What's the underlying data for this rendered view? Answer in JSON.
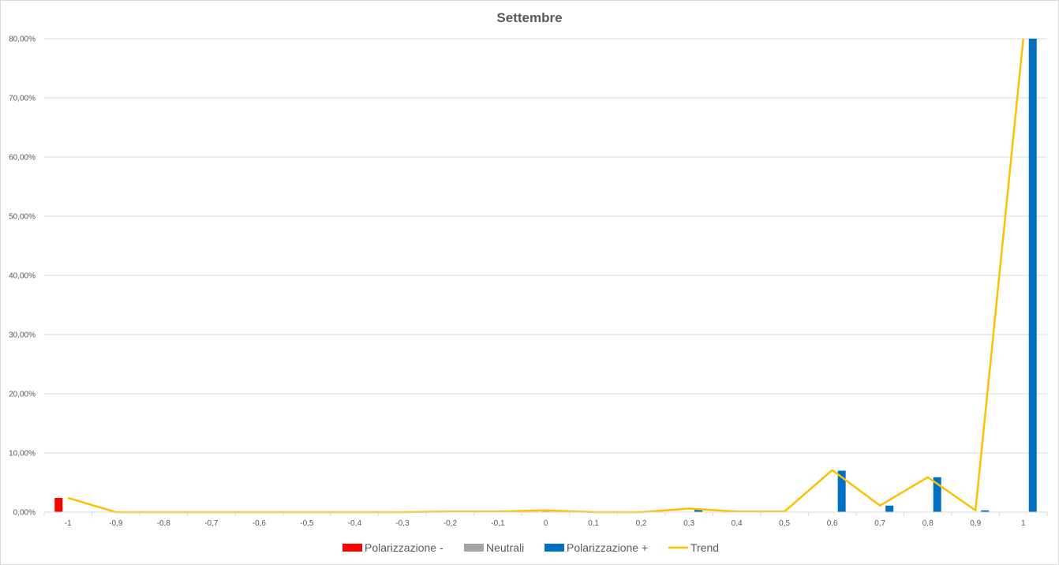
{
  "chart_data": {
    "type": "bar",
    "title": "Settembre",
    "xlabel": "",
    "ylabel": "",
    "categories": [
      "-1",
      "-0,9",
      "-0,8",
      "-0,7",
      "-0,6",
      "-0,5",
      "-0,4",
      "-0,3",
      "-0,2",
      "-0,1",
      "0",
      "0,1",
      "0,2",
      "0,3",
      "0,4",
      "0,5",
      "0,6",
      "0,7",
      "0,8",
      "0,9",
      "1"
    ],
    "y_ticks": [
      "0,00%",
      "10,00%",
      "20,00%",
      "30,00%",
      "40,00%",
      "50,00%",
      "60,00%",
      "70,00%",
      "80,00%"
    ],
    "ylim": [
      0,
      80
    ],
    "grid": true,
    "legend_position": "bottom",
    "series": [
      {
        "name": "Polarizzazione -",
        "type": "bar",
        "color": "#ff0000",
        "values": [
          2.4,
          0,
          0,
          0,
          0,
          0,
          0,
          0,
          0.1,
          0.1,
          0,
          0,
          0,
          0,
          0,
          0,
          0,
          0,
          0,
          0,
          0
        ]
      },
      {
        "name": "Neutrali",
        "type": "bar",
        "color": "#a5a5a5",
        "values": [
          0,
          0,
          0,
          0,
          0,
          0,
          0,
          0,
          0,
          0,
          0.3,
          0,
          0,
          0,
          0,
          0,
          0,
          0,
          0,
          0,
          0
        ]
      },
      {
        "name": "Polarizzazione +",
        "type": "bar",
        "color": "#0070c0",
        "values": [
          0,
          0,
          0,
          0,
          0,
          0,
          0,
          0,
          0,
          0,
          0,
          0,
          0,
          0.5,
          0.1,
          0,
          7.0,
          1.1,
          5.9,
          0.3,
          80.0
        ]
      },
      {
        "name": "Trend",
        "type": "line",
        "color": "#ffc000",
        "values": [
          2.4,
          0,
          0,
          0,
          0,
          0,
          0,
          0,
          0.1,
          0.1,
          0.3,
          0,
          0,
          0.6,
          0.1,
          0.1,
          7.1,
          1.1,
          5.9,
          0.3,
          80.0
        ]
      }
    ]
  }
}
